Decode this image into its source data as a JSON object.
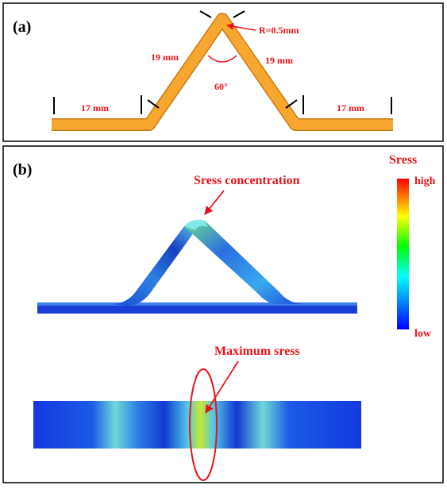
{
  "panel_a": {
    "label": "(a)",
    "radius": "R=0.5mm",
    "side_left": "19 mm",
    "side_right": "19 mm",
    "angle": "60°",
    "base_left": "17 mm",
    "base_right": "17 mm"
  },
  "panel_b": {
    "label": "(b)",
    "concentration": "Sress concentration",
    "maximum": "Maximum sress",
    "colorbar": {
      "title": "Sress",
      "high": "high",
      "low": "low"
    }
  }
}
